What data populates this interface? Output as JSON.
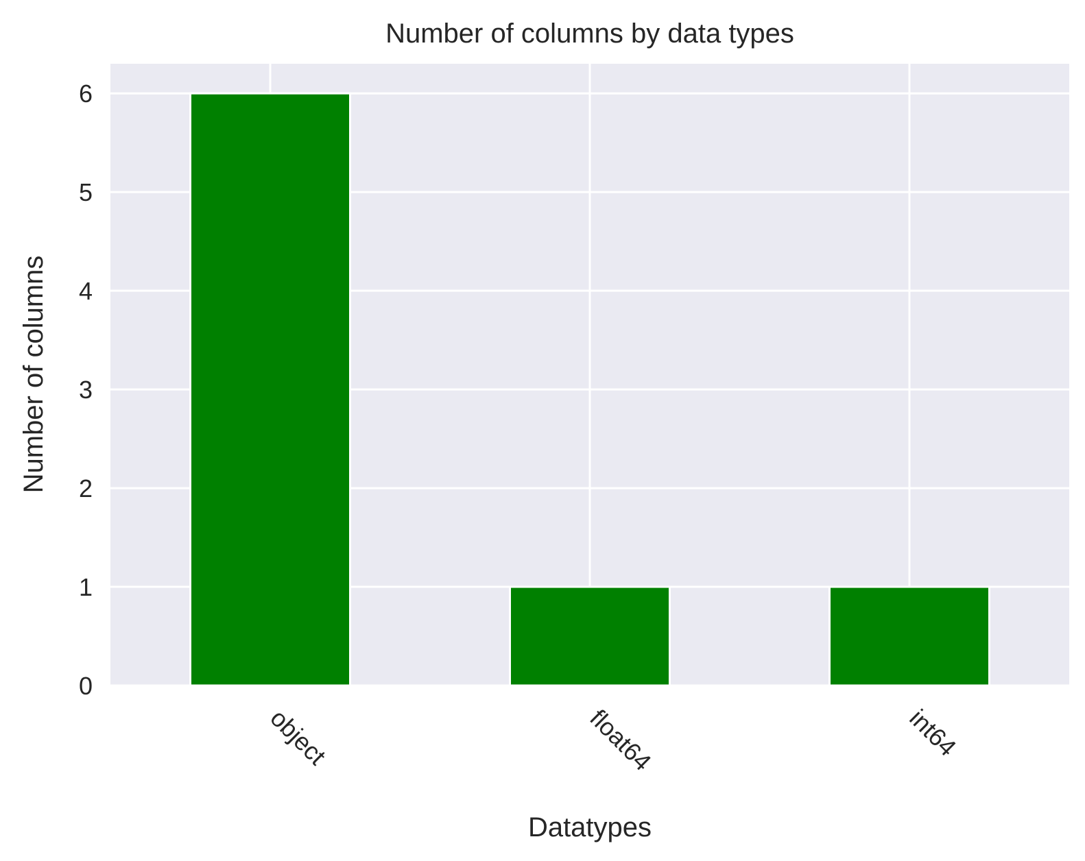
{
  "chart_data": {
    "type": "bar",
    "title": "Number of columns by data types",
    "xlabel": "Datatypes",
    "ylabel": "Number of columns",
    "categories": [
      "object",
      "float64",
      "int64"
    ],
    "values": [
      6,
      1,
      1
    ],
    "ylim": [
      0,
      6.3
    ],
    "yticks": [
      "0",
      "1",
      "2",
      "3",
      "4",
      "5",
      "6"
    ],
    "grid": true,
    "xtick_rotation_deg": 45,
    "colors": {
      "bar": "#008000",
      "plot_background": "#eaeaf2",
      "grid": "#ffffff",
      "text": "#262626"
    }
  }
}
